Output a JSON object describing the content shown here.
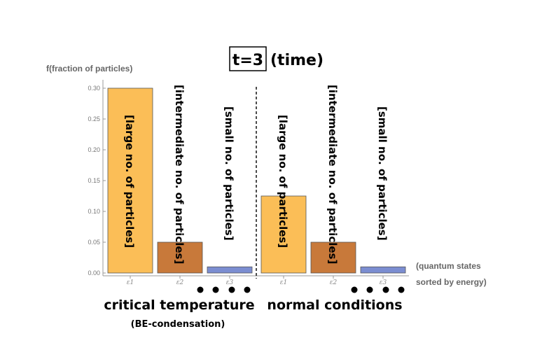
{
  "chart_data": {
    "type": "bar",
    "title_boxed": "t=3",
    "title_rest": "(time)",
    "ylabel": "f(fraction of particles)",
    "xlabel_lines": [
      "(quantum states",
      "sorted by energy)"
    ],
    "ylim": [
      0,
      0.3
    ],
    "yticks": [
      "0.00",
      "0.05",
      "0.10",
      "0.15",
      "0.20",
      "0.25",
      "0.30"
    ],
    "groups": [
      {
        "label": "critical temperature",
        "sublabel": "(BE-condensation)",
        "bars": [
          {
            "category": "ε1",
            "value": 0.3,
            "label": "[large no. of particles]",
            "color": "#FBBE57"
          },
          {
            "category": "ε2",
            "value": 0.05,
            "label": "[intermediate no. of particles]",
            "color": "#C8793A"
          },
          {
            "category": "ε3",
            "value": 0.01,
            "label": "[small no. of particles]",
            "color": "#7B8DD1"
          }
        ]
      },
      {
        "label": "normal conditions",
        "sublabel": "",
        "bars": [
          {
            "category": "ε1",
            "value": 0.125,
            "label": "[large no. of particles]",
            "color": "#FBBE57"
          },
          {
            "category": "ε2",
            "value": 0.05,
            "label": "[intermediate no. of particles]",
            "color": "#C8793A"
          },
          {
            "category": "ε3",
            "value": 0.01,
            "label": "[small no. of particles]",
            "color": "#7B8DD1"
          }
        ]
      }
    ]
  }
}
